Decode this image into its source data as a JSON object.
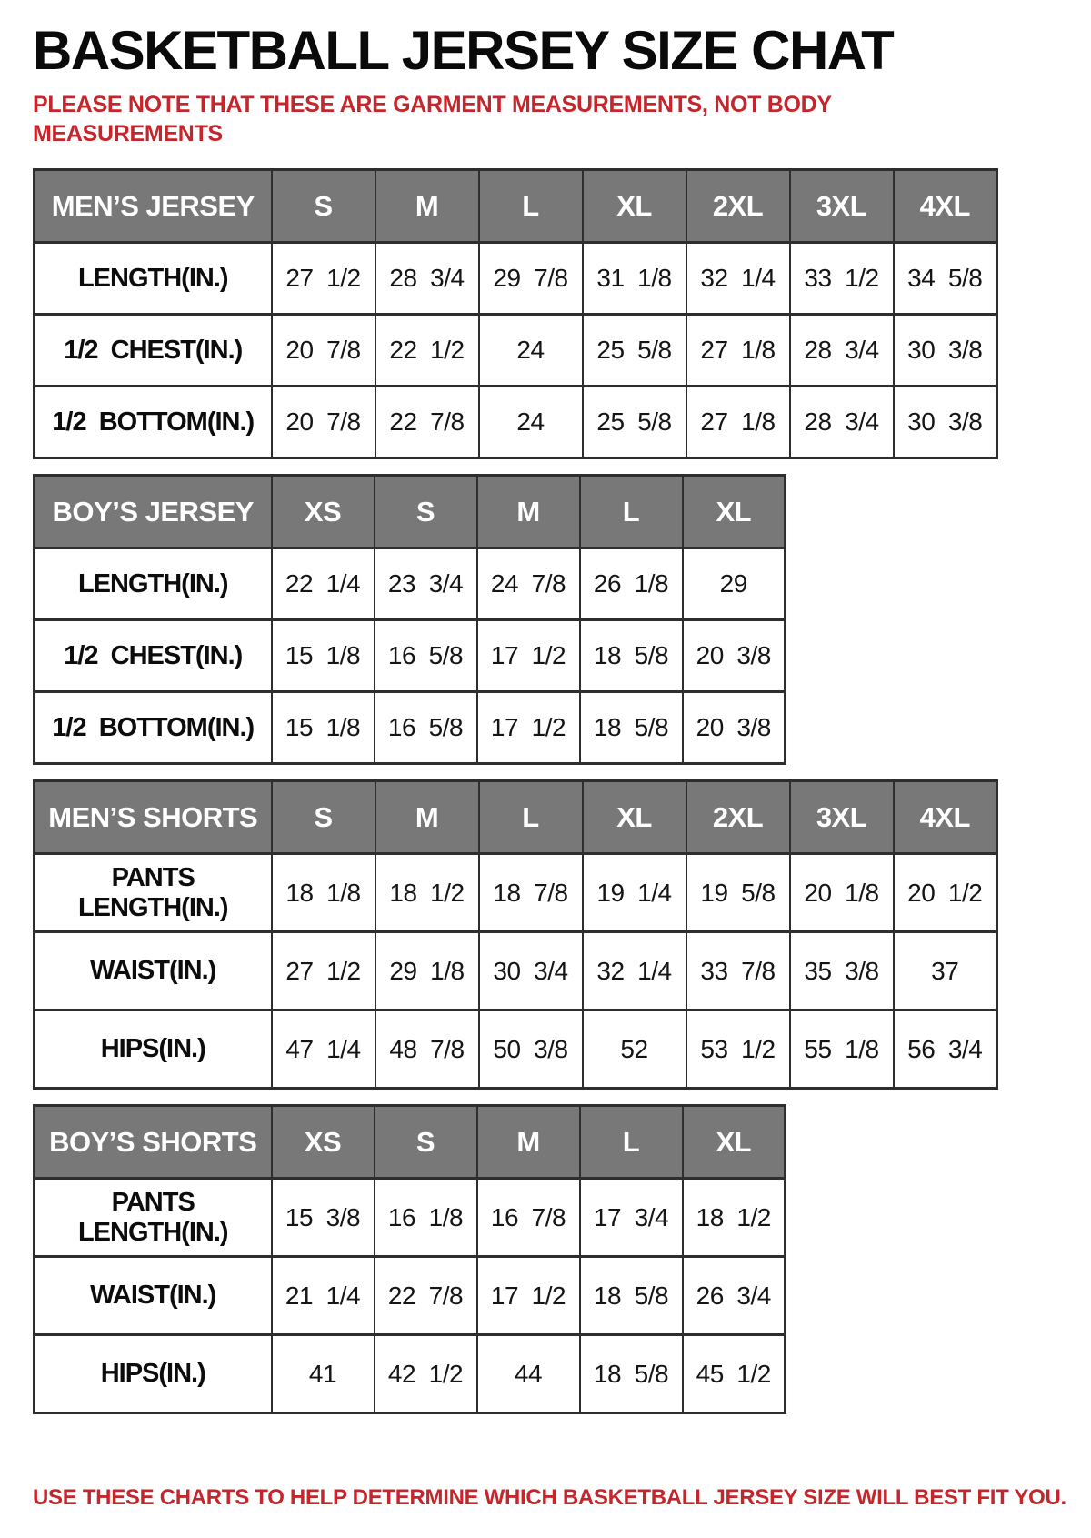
{
  "page": {
    "title": "BASKETBALL JERSEY SIZE CHAT",
    "note_top": "PLEASE NOTE THAT THESE ARE GARMENT MEASUREMENTS, NOT BODY MEASUREMENTS",
    "note_bottom": "USE THESE CHARTS TO HELP DETERMINE WHICH BASKETBALL JERSEY SIZE WILL BEST FIT YOU."
  },
  "colors": {
    "header_bg": "#787878",
    "header_text": "#ffffff",
    "note_red": "#c5262c",
    "border": "#2e2e2e",
    "text": "#111111"
  },
  "tables": [
    {
      "name": "MEN’S JERSEY",
      "sizes": [
        "S",
        "M",
        "L",
        "XL",
        "2XL",
        "3XL",
        "4XL"
      ],
      "rows": [
        {
          "label": "LENGTH(IN.)",
          "values": [
            "27  1/2",
            "28  3/4",
            "29  7/8",
            "31  1/8",
            "32  1/4",
            "33  1/2",
            "34  5/8"
          ]
        },
        {
          "label": "1/2  CHEST(IN.)",
          "values": [
            "20  7/8",
            "22  1/2",
            "24",
            "25  5/8",
            "27  1/8",
            "28  3/4",
            "30  3/8"
          ]
        },
        {
          "label": "1/2  BOTTOM(IN.)",
          "values": [
            "20  7/8",
            "22  7/8",
            "24",
            "25  5/8",
            "27  1/8",
            "28  3/4",
            "30  3/8"
          ]
        }
      ]
    },
    {
      "name": "BOY’S JERSEY",
      "sizes": [
        "XS",
        "S",
        "M",
        "L",
        "XL"
      ],
      "rows": [
        {
          "label": "LENGTH(IN.)",
          "values": [
            "22  1/4",
            "23  3/4",
            "24  7/8",
            "26  1/8",
            "29"
          ]
        },
        {
          "label": "1/2  CHEST(IN.)",
          "values": [
            "15  1/8",
            "16  5/8",
            "17  1/2",
            "18  5/8",
            "20  3/8"
          ]
        },
        {
          "label": "1/2  BOTTOM(IN.)",
          "values": [
            "15  1/8",
            "16  5/8",
            "17  1/2",
            "18  5/8",
            "20  3/8"
          ]
        }
      ]
    },
    {
      "name": "MEN’S SHORTS",
      "sizes": [
        "S",
        "M",
        "L",
        "XL",
        "2XL",
        "3XL",
        "4XL"
      ],
      "rows": [
        {
          "label": "PANTS\nLENGTH(IN.)",
          "values": [
            "18  1/8",
            "18  1/2",
            "18  7/8",
            "19  1/4",
            "19  5/8",
            "20  1/8",
            "20  1/2"
          ]
        },
        {
          "label": "WAIST(IN.)",
          "values": [
            "27  1/2",
            "29  1/8",
            "30  3/4",
            "32  1/4",
            "33  7/8",
            "35  3/8",
            "37"
          ]
        },
        {
          "label": "HIPS(IN.)",
          "values": [
            "47  1/4",
            "48  7/8",
            "50  3/8",
            "52",
            "53  1/2",
            "55  1/8",
            "56  3/4"
          ]
        }
      ]
    },
    {
      "name": "BOY’S SHORTS",
      "sizes": [
        "XS",
        "S",
        "M",
        "L",
        "XL"
      ],
      "rows": [
        {
          "label": "PANTS\nLENGTH(IN.)",
          "values": [
            "15  3/8",
            "16  1/8",
            "16  7/8",
            "17  3/4",
            "18  1/2"
          ]
        },
        {
          "label": "WAIST(IN.)",
          "values": [
            "21  1/4",
            "22  7/8",
            "17  1/2",
            "18  5/8",
            "26  3/4"
          ]
        },
        {
          "label": "HIPS(IN.)",
          "values": [
            "41",
            "42  1/2",
            "44",
            "18  5/8",
            "45  1/2"
          ]
        }
      ]
    }
  ]
}
